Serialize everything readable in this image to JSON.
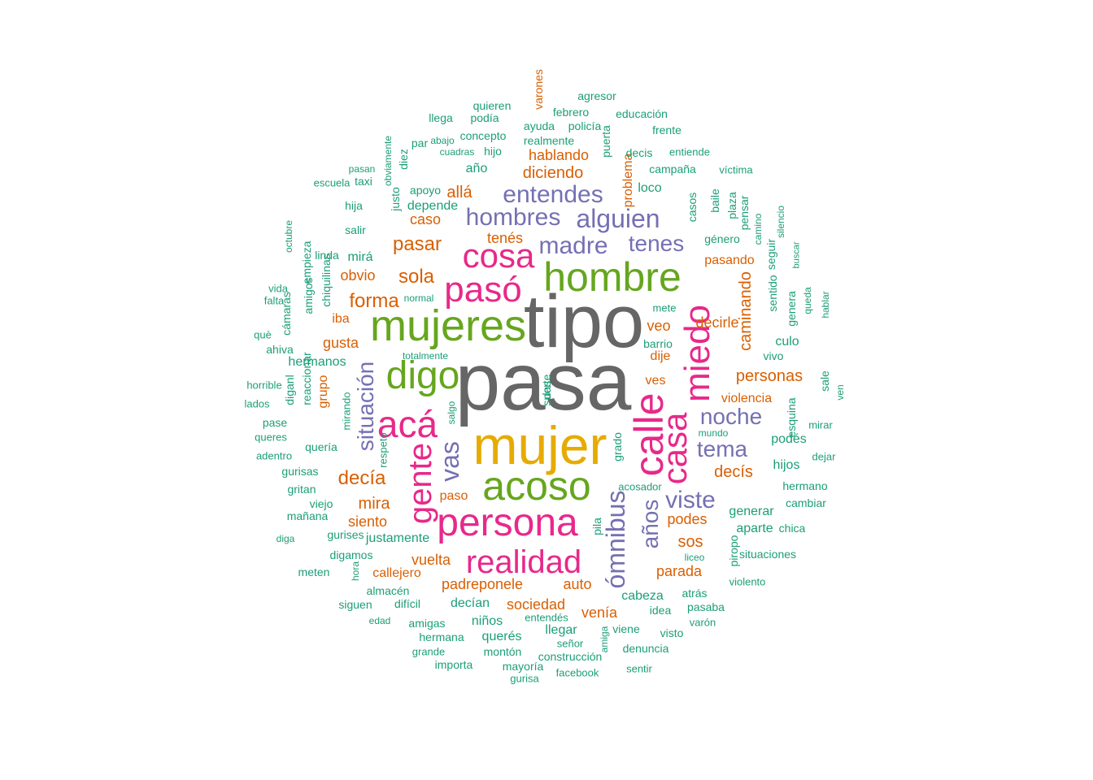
{
  "palette": {
    "gray": "#666666",
    "gold": "#E6AB02",
    "green": "#66A61E",
    "magenta": "#E7298A",
    "purple": "#7570B3",
    "orange": "#D95F02",
    "teal": "#1B9E77"
  },
  "words": [
    {
      "text": "pasa",
      "color": "gray",
      "vertical": false
    },
    {
      "text": "tipo",
      "color": "gray",
      "vertical": false
    },
    {
      "text": "mujer",
      "color": "gold",
      "vertical": false
    },
    {
      "text": "mujeres",
      "color": "green",
      "vertical": false
    },
    {
      "text": "acoso",
      "color": "green",
      "vertical": false
    },
    {
      "text": "hombre",
      "color": "green",
      "vertical": false
    },
    {
      "text": "digo",
      "color": "green",
      "vertical": false
    },
    {
      "text": "persona",
      "color": "magenta",
      "vertical": false
    },
    {
      "text": "pasó",
      "color": "magenta",
      "vertical": false
    },
    {
      "text": "acá",
      "color": "magenta",
      "vertical": false
    },
    {
      "text": "cosa",
      "color": "magenta",
      "vertical": false
    },
    {
      "text": "realidad",
      "color": "magenta",
      "vertical": false
    },
    {
      "text": "calle",
      "color": "magenta",
      "vertical": true
    },
    {
      "text": "casa",
      "color": "magenta",
      "vertical": true
    },
    {
      "text": "miedo",
      "color": "magenta",
      "vertical": true
    },
    {
      "text": "gente",
      "color": "magenta",
      "vertical": true
    },
    {
      "text": "entendes",
      "color": "purple",
      "vertical": false
    },
    {
      "text": "alguien",
      "color": "purple",
      "vertical": false
    },
    {
      "text": "hombres",
      "color": "purple",
      "vertical": false
    },
    {
      "text": "madre",
      "color": "purple",
      "vertical": false
    },
    {
      "text": "tenes",
      "color": "purple",
      "vertical": false
    },
    {
      "text": "noche",
      "color": "purple",
      "vertical": false
    },
    {
      "text": "tema",
      "color": "purple",
      "vertical": false
    },
    {
      "text": "viste",
      "color": "purple",
      "vertical": false
    },
    {
      "text": "vas",
      "color": "purple",
      "vertical": true
    },
    {
      "text": "situación",
      "color": "purple",
      "vertical": true
    },
    {
      "text": "ómnibus",
      "color": "purple",
      "vertical": true
    },
    {
      "text": "años",
      "color": "purple",
      "vertical": true
    },
    {
      "text": "pasar",
      "color": "orange",
      "vertical": false
    },
    {
      "text": "sola",
      "color": "orange",
      "vertical": false
    },
    {
      "text": "forma",
      "color": "orange",
      "vertical": false
    },
    {
      "text": "decía",
      "color": "orange",
      "vertical": false
    },
    {
      "text": "diciendo",
      "color": "orange",
      "vertical": false
    },
    {
      "text": "hablando",
      "color": "orange",
      "vertical": false
    },
    {
      "text": "allá",
      "color": "orange",
      "vertical": false
    },
    {
      "text": "caso",
      "color": "orange",
      "vertical": false
    },
    {
      "text": "tenés",
      "color": "orange",
      "vertical": false
    },
    {
      "text": "obvio",
      "color": "orange",
      "vertical": false
    },
    {
      "text": "iba",
      "color": "orange",
      "vertical": false
    },
    {
      "text": "gusta",
      "color": "orange",
      "vertical": false
    },
    {
      "text": "mira",
      "color": "orange",
      "vertical": false
    },
    {
      "text": "siento",
      "color": "orange",
      "vertical": false
    },
    {
      "text": "vuelta",
      "color": "orange",
      "vertical": false
    },
    {
      "text": "callejero",
      "color": "orange",
      "vertical": false
    },
    {
      "text": "padreponele",
      "color": "orange",
      "vertical": false
    },
    {
      "text": "auto",
      "color": "orange",
      "vertical": false
    },
    {
      "text": "sociedad",
      "color": "orange",
      "vertical": false
    },
    {
      "text": "venía",
      "color": "orange",
      "vertical": false
    },
    {
      "text": "paso",
      "color": "orange",
      "vertical": false
    },
    {
      "text": "veo",
      "color": "orange",
      "vertical": false
    },
    {
      "text": "dije",
      "color": "orange",
      "vertical": false
    },
    {
      "text": "ves",
      "color": "orange",
      "vertical": false
    },
    {
      "text": "personas",
      "color": "orange",
      "vertical": false
    },
    {
      "text": "violencia",
      "color": "orange",
      "vertical": false
    },
    {
      "text": "decís",
      "color": "orange",
      "vertical": false
    },
    {
      "text": "podes",
      "color": "orange",
      "vertical": false
    },
    {
      "text": "sos",
      "color": "orange",
      "vertical": false
    },
    {
      "text": "parada",
      "color": "orange",
      "vertical": false
    },
    {
      "text": "pasando",
      "color": "orange",
      "vertical": false
    },
    {
      "text": "decirle",
      "color": "orange",
      "vertical": false
    },
    {
      "text": "caminando",
      "color": "orange",
      "vertical": true
    },
    {
      "text": "problema",
      "color": "orange",
      "vertical": true
    },
    {
      "text": "grupo",
      "color": "orange",
      "vertical": true
    },
    {
      "text": "varones",
      "color": "orange",
      "vertical": true
    },
    {
      "text": "agresor",
      "color": "teal",
      "vertical": false
    },
    {
      "text": "quieren",
      "color": "teal",
      "vertical": false
    },
    {
      "text": "febrero",
      "color": "teal",
      "vertical": false
    },
    {
      "text": "educación",
      "color": "teal",
      "vertical": false
    },
    {
      "text": "llega",
      "color": "teal",
      "vertical": false
    },
    {
      "text": "podía",
      "color": "teal",
      "vertical": false
    },
    {
      "text": "ayuda",
      "color": "teal",
      "vertical": false
    },
    {
      "text": "policía",
      "color": "teal",
      "vertical": false
    },
    {
      "text": "frente",
      "color": "teal",
      "vertical": false
    },
    {
      "text": "concepto",
      "color": "teal",
      "vertical": false
    },
    {
      "text": "realmente",
      "color": "teal",
      "vertical": false
    },
    {
      "text": "cuadras",
      "color": "teal",
      "vertical": false
    },
    {
      "text": "hijo",
      "color": "teal",
      "vertical": false
    },
    {
      "text": "decis",
      "color": "teal",
      "vertical": false
    },
    {
      "text": "entiende",
      "color": "teal",
      "vertical": false
    },
    {
      "text": "pasan",
      "color": "teal",
      "vertical": false
    },
    {
      "text": "año",
      "color": "teal",
      "vertical": false
    },
    {
      "text": "campaña",
      "color": "teal",
      "vertical": false
    },
    {
      "text": "víctima",
      "color": "teal",
      "vertical": false
    },
    {
      "text": "escuela",
      "color": "teal",
      "vertical": false
    },
    {
      "text": "taxi",
      "color": "teal",
      "vertical": false
    },
    {
      "text": "apoyo",
      "color": "teal",
      "vertical": false
    },
    {
      "text": "loco",
      "color": "teal",
      "vertical": false
    },
    {
      "text": "hija",
      "color": "teal",
      "vertical": false
    },
    {
      "text": "depende",
      "color": "teal",
      "vertical": false
    },
    {
      "text": "salir",
      "color": "teal",
      "vertical": false
    },
    {
      "text": "género",
      "color": "teal",
      "vertical": false
    },
    {
      "text": "mirá",
      "color": "teal",
      "vertical": false
    },
    {
      "text": "linda",
      "color": "teal",
      "vertical": false
    },
    {
      "text": "vida",
      "color": "teal",
      "vertical": false
    },
    {
      "text": "falta",
      "color": "teal",
      "vertical": false
    },
    {
      "text": "normal",
      "color": "teal",
      "vertical": false
    },
    {
      "text": "mete",
      "color": "teal",
      "vertical": false
    },
    {
      "text": "què",
      "color": "teal",
      "vertical": false
    },
    {
      "text": "ahiva",
      "color": "teal",
      "vertical": false
    },
    {
      "text": "hermanos",
      "color": "teal",
      "vertical": false
    },
    {
      "text": "totalmente",
      "color": "teal",
      "vertical": false
    },
    {
      "text": "barrio",
      "color": "teal",
      "vertical": false
    },
    {
      "text": "culo",
      "color": "teal",
      "vertical": false
    },
    {
      "text": "vivo",
      "color": "teal",
      "vertical": false
    },
    {
      "text": "horrible",
      "color": "teal",
      "vertical": false
    },
    {
      "text": "lados",
      "color": "teal",
      "vertical": false
    },
    {
      "text": "pase",
      "color": "teal",
      "vertical": false
    },
    {
      "text": "queres",
      "color": "teal",
      "vertical": false
    },
    {
      "text": "quería",
      "color": "teal",
      "vertical": false
    },
    {
      "text": "mirar",
      "color": "teal",
      "vertical": false
    },
    {
      "text": "mundo",
      "color": "teal",
      "vertical": false
    },
    {
      "text": "podés",
      "color": "teal",
      "vertical": false
    },
    {
      "text": "dejar",
      "color": "teal",
      "vertical": false
    },
    {
      "text": "adentro",
      "color": "teal",
      "vertical": false
    },
    {
      "text": "gurisas",
      "color": "teal",
      "vertical": false
    },
    {
      "text": "hijos",
      "color": "teal",
      "vertical": false
    },
    {
      "text": "acosador",
      "color": "teal",
      "vertical": false
    },
    {
      "text": "gritan",
      "color": "teal",
      "vertical": false
    },
    {
      "text": "hermano",
      "color": "teal",
      "vertical": false
    },
    {
      "text": "viejo",
      "color": "teal",
      "vertical": false
    },
    {
      "text": "cambiar",
      "color": "teal",
      "vertical": false
    },
    {
      "text": "mañana",
      "color": "teal",
      "vertical": false
    },
    {
      "text": "generar",
      "color": "teal",
      "vertical": false
    },
    {
      "text": "aparte",
      "color": "teal",
      "vertical": false
    },
    {
      "text": "chica",
      "color": "teal",
      "vertical": false
    },
    {
      "text": "diga",
      "color": "teal",
      "vertical": false
    },
    {
      "text": "gurises",
      "color": "teal",
      "vertical": false
    },
    {
      "text": "justamente",
      "color": "teal",
      "vertical": false
    },
    {
      "text": "digamos",
      "color": "teal",
      "vertical": false
    },
    {
      "text": "liceo",
      "color": "teal",
      "vertical": false
    },
    {
      "text": "situaciones",
      "color": "teal",
      "vertical": false
    },
    {
      "text": "meten",
      "color": "teal",
      "vertical": false
    },
    {
      "text": "violento",
      "color": "teal",
      "vertical": false
    },
    {
      "text": "almacén",
      "color": "teal",
      "vertical": false
    },
    {
      "text": "siguen",
      "color": "teal",
      "vertical": false
    },
    {
      "text": "difícil",
      "color": "teal",
      "vertical": false
    },
    {
      "text": "decían",
      "color": "teal",
      "vertical": false
    },
    {
      "text": "cabeza",
      "color": "teal",
      "vertical": false
    },
    {
      "text": "atrás",
      "color": "teal",
      "vertical": false
    },
    {
      "text": "idea",
      "color": "teal",
      "vertical": false
    },
    {
      "text": "pasaba",
      "color": "teal",
      "vertical": false
    },
    {
      "text": "edad",
      "color": "teal",
      "vertical": false
    },
    {
      "text": "amigas",
      "color": "teal",
      "vertical": false
    },
    {
      "text": "niños",
      "color": "teal",
      "vertical": false
    },
    {
      "text": "entendés",
      "color": "teal",
      "vertical": false
    },
    {
      "text": "viene",
      "color": "teal",
      "vertical": false
    },
    {
      "text": "varón",
      "color": "teal",
      "vertical": false
    },
    {
      "text": "llegar",
      "color": "teal",
      "vertical": false
    },
    {
      "text": "visto",
      "color": "teal",
      "vertical": false
    },
    {
      "text": "hermana",
      "color": "teal",
      "vertical": false
    },
    {
      "text": "querés",
      "color": "teal",
      "vertical": false
    },
    {
      "text": "señor",
      "color": "teal",
      "vertical": false
    },
    {
      "text": "grande",
      "color": "teal",
      "vertical": false
    },
    {
      "text": "montón",
      "color": "teal",
      "vertical": false
    },
    {
      "text": "construcción",
      "color": "teal",
      "vertical": false
    },
    {
      "text": "denuncia",
      "color": "teal",
      "vertical": false
    },
    {
      "text": "importa",
      "color": "teal",
      "vertical": false
    },
    {
      "text": "mayoría",
      "color": "teal",
      "vertical": false
    },
    {
      "text": "facebook",
      "color": "teal",
      "vertical": false
    },
    {
      "text": "sentir",
      "color": "teal",
      "vertical": false
    },
    {
      "text": "gurisa",
      "color": "teal",
      "vertical": false
    },
    {
      "text": "abajo",
      "color": "teal",
      "vertical": false
    },
    {
      "text": "par",
      "color": "teal",
      "vertical": false
    },
    {
      "text": "diez",
      "color": "teal",
      "vertical": true
    },
    {
      "text": "obviamente",
      "color": "teal",
      "vertical": true
    },
    {
      "text": "puerta",
      "color": "teal",
      "vertical": true
    },
    {
      "text": "justo",
      "color": "teal",
      "vertical": true
    },
    {
      "text": "casos",
      "color": "teal",
      "vertical": true
    },
    {
      "text": "baile",
      "color": "teal",
      "vertical": true
    },
    {
      "text": "plaza",
      "color": "teal",
      "vertical": true
    },
    {
      "text": "pensar",
      "color": "teal",
      "vertical": true
    },
    {
      "text": "camino",
      "color": "teal",
      "vertical": true
    },
    {
      "text": "seguir",
      "color": "teal",
      "vertical": true
    },
    {
      "text": "silencio",
      "color": "teal",
      "vertical": true
    },
    {
      "text": "octubre",
      "color": "teal",
      "vertical": true
    },
    {
      "text": "empieza",
      "color": "teal",
      "vertical": true
    },
    {
      "text": "chiquilinas",
      "color": "teal",
      "vertical": true
    },
    {
      "text": "amigos",
      "color": "teal",
      "vertical": true
    },
    {
      "text": "buscar",
      "color": "teal",
      "vertical": true
    },
    {
      "text": "sentido",
      "color": "teal",
      "vertical": true
    },
    {
      "text": "genera",
      "color": "teal",
      "vertical": true
    },
    {
      "text": "queda",
      "color": "teal",
      "vertical": true
    },
    {
      "text": "hablar",
      "color": "teal",
      "vertical": true
    },
    {
      "text": "cámaras",
      "color": "teal",
      "vertical": true
    },
    {
      "text": "reaccionar",
      "color": "teal",
      "vertical": true
    },
    {
      "text": "diganl",
      "color": "teal",
      "vertical": true
    },
    {
      "text": "mirando",
      "color": "teal",
      "vertical": true
    },
    {
      "text": "salgo",
      "color": "teal",
      "vertical": true
    },
    {
      "text": "respeto",
      "color": "teal",
      "vertical": true
    },
    {
      "text": "sale",
      "color": "teal",
      "vertical": true
    },
    {
      "text": "ven",
      "color": "teal",
      "vertical": true
    },
    {
      "text": "esquina",
      "color": "teal",
      "vertical": true
    },
    {
      "text": "grado",
      "color": "teal",
      "vertical": true
    },
    {
      "text": "pila",
      "color": "teal",
      "vertical": true
    },
    {
      "text": "piropo",
      "color": "teal",
      "vertical": true
    },
    {
      "text": "hora",
      "color": "teal",
      "vertical": true
    },
    {
      "text": "amiga",
      "color": "teal",
      "vertical": true
    },
    {
      "text": "das",
      "color": "teal",
      "vertical": true
    },
    {
      "text": "suerte",
      "color": "teal",
      "vertical": true
    }
  ]
}
